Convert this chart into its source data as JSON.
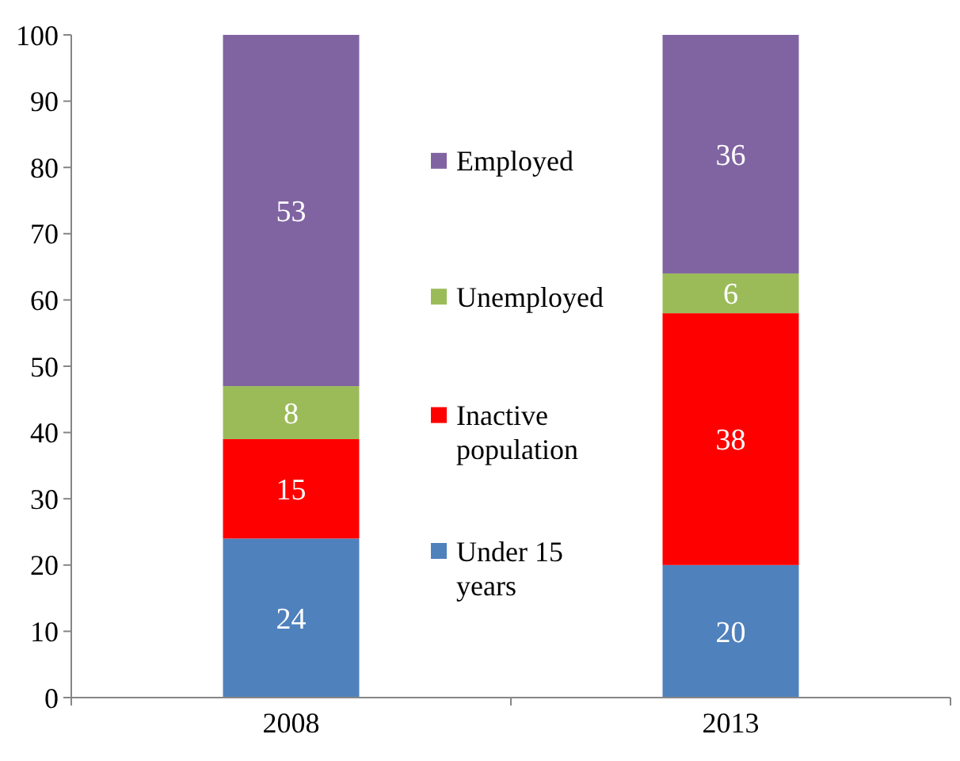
{
  "chart_data": {
    "type": "bar",
    "stacked": true,
    "categories": [
      "2008",
      "2013"
    ],
    "series": [
      {
        "name": "Under 15 years",
        "color": "#4f81bd",
        "values": [
          24,
          20
        ]
      },
      {
        "name": "Inactive population",
        "color": "#ff0000",
        "values": [
          15,
          38
        ]
      },
      {
        "name": "Unemployed",
        "color": "#9bbb59",
        "values": [
          8,
          6
        ]
      },
      {
        "name": "Employed",
        "color": "#8064a2",
        "values": [
          53,
          36
        ]
      }
    ],
    "ylim": [
      0,
      100
    ],
    "yticks": [
      0,
      10,
      20,
      30,
      40,
      50,
      60,
      70,
      80,
      90,
      100
    ],
    "data_labels": true,
    "legend": "center",
    "grid": false
  }
}
